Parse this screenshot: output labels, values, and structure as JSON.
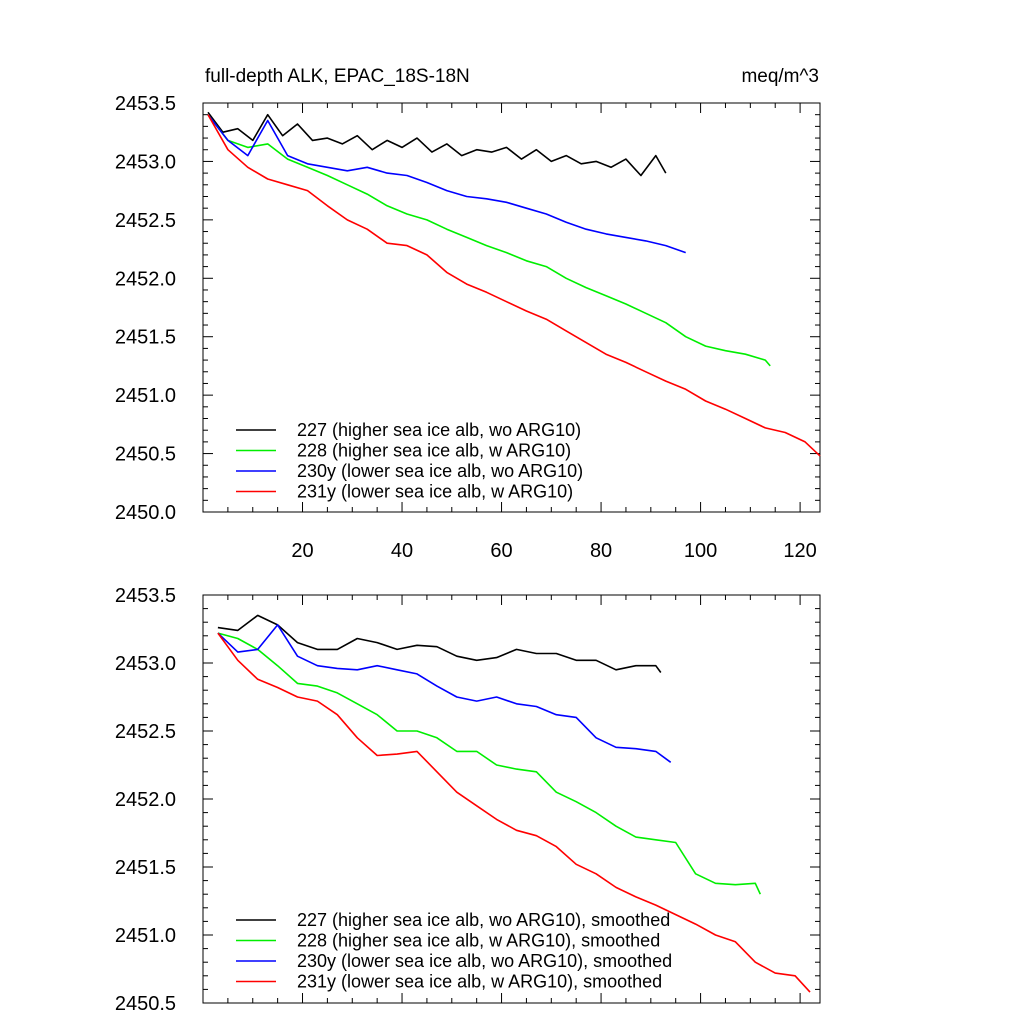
{
  "chart_data": [
    {
      "type": "line",
      "title": "full-depth ALK, EPAC_18S-18N",
      "units": "meq/m^3",
      "xlim": [
        0,
        124
      ],
      "ylim": [
        2450.0,
        2453.5
      ],
      "yticks": [
        "2450.0",
        "2450.5",
        "2451.0",
        "2451.5",
        "2452.0",
        "2452.5",
        "2453.0",
        "2453.5"
      ],
      "xticks": [
        "20",
        "40",
        "60",
        "80",
        "100",
        "120"
      ],
      "legend_position": "bottom-left",
      "series": [
        {
          "name": "227 (higher sea ice alb, wo ARG10)",
          "color": "#000000",
          "x": [
            1,
            4,
            7,
            10,
            13,
            16,
            19,
            22,
            25,
            28,
            31,
            34,
            37,
            40,
            43,
            46,
            49,
            52,
            55,
            58,
            61,
            64,
            67,
            70,
            73,
            76,
            79,
            82,
            85,
            88,
            91,
            93
          ],
          "y": [
            2453.42,
            2453.25,
            2453.28,
            2453.18,
            2453.4,
            2453.22,
            2453.32,
            2453.18,
            2453.2,
            2453.15,
            2453.22,
            2453.1,
            2453.18,
            2453.12,
            2453.2,
            2453.08,
            2453.15,
            2453.05,
            2453.1,
            2453.08,
            2453.12,
            2453.02,
            2453.1,
            2453.0,
            2453.05,
            2452.98,
            2453.0,
            2452.95,
            2453.02,
            2452.88,
            2453.05,
            2452.9
          ]
        },
        {
          "name": "228 (higher sea ice alb, w ARG10)",
          "color": "#00ee00",
          "x": [
            1,
            5,
            9,
            13,
            17,
            21,
            25,
            29,
            33,
            37,
            41,
            45,
            49,
            53,
            57,
            61,
            65,
            69,
            73,
            77,
            81,
            85,
            89,
            93,
            97,
            101,
            105,
            109,
            113,
            114
          ],
          "y": [
            2453.4,
            2453.18,
            2453.12,
            2453.15,
            2453.02,
            2452.95,
            2452.88,
            2452.8,
            2452.72,
            2452.62,
            2452.55,
            2452.5,
            2452.42,
            2452.35,
            2452.28,
            2452.22,
            2452.15,
            2452.1,
            2452.0,
            2451.92,
            2451.85,
            2451.78,
            2451.7,
            2451.62,
            2451.5,
            2451.42,
            2451.38,
            2451.35,
            2451.3,
            2451.25
          ]
        },
        {
          "name": "230y (lower sea ice alb, wo ARG10)",
          "color": "#0000ff",
          "x": [
            1,
            5,
            9,
            13,
            17,
            21,
            25,
            29,
            33,
            37,
            41,
            45,
            49,
            53,
            57,
            61,
            65,
            69,
            73,
            77,
            81,
            85,
            89,
            93,
            97
          ],
          "y": [
            2453.4,
            2453.18,
            2453.05,
            2453.35,
            2453.05,
            2452.98,
            2452.95,
            2452.92,
            2452.95,
            2452.9,
            2452.88,
            2452.82,
            2452.75,
            2452.7,
            2452.68,
            2452.65,
            2452.6,
            2452.55,
            2452.48,
            2452.42,
            2452.38,
            2452.35,
            2452.32,
            2452.28,
            2452.22
          ]
        },
        {
          "name": "231y (lower sea ice alb, w ARG10)",
          "color": "#ff0000",
          "x": [
            1,
            5,
            9,
            13,
            17,
            21,
            25,
            29,
            33,
            37,
            41,
            45,
            49,
            53,
            57,
            61,
            65,
            69,
            73,
            77,
            81,
            85,
            89,
            93,
            97,
            101,
            105,
            109,
            113,
            117,
            121,
            124
          ],
          "y": [
            2453.4,
            2453.1,
            2452.95,
            2452.85,
            2452.8,
            2452.75,
            2452.62,
            2452.5,
            2452.42,
            2452.3,
            2452.28,
            2452.2,
            2452.05,
            2451.95,
            2451.88,
            2451.8,
            2451.72,
            2451.65,
            2451.55,
            2451.45,
            2451.35,
            2451.28,
            2451.2,
            2451.12,
            2451.05,
            2450.95,
            2450.88,
            2450.8,
            2450.72,
            2450.68,
            2450.6,
            2450.48
          ]
        }
      ]
    },
    {
      "type": "line",
      "xlim": [
        0,
        124
      ],
      "ylim": [
        2450.5,
        2453.5
      ],
      "yticks": [
        "2450.5",
        "2451.0",
        "2451.5",
        "2452.0",
        "2452.5",
        "2453.0",
        "2453.5"
      ],
      "xticks": [],
      "legend_position": "bottom-left",
      "series": [
        {
          "name": "227 (higher sea ice alb, wo ARG10), smoothed",
          "color": "#000000",
          "x": [
            3,
            7,
            11,
            15,
            19,
            23,
            27,
            31,
            35,
            39,
            43,
            47,
            51,
            55,
            59,
            63,
            67,
            71,
            75,
            79,
            83,
            87,
            91,
            92
          ],
          "y": [
            2453.26,
            2453.24,
            2453.35,
            2453.28,
            2453.15,
            2453.1,
            2453.1,
            2453.18,
            2453.15,
            2453.1,
            2453.13,
            2453.12,
            2453.05,
            2453.02,
            2453.04,
            2453.1,
            2453.07,
            2453.07,
            2453.02,
            2453.02,
            2452.95,
            2452.98,
            2452.98,
            2452.93
          ]
        },
        {
          "name": "228 (higher sea ice alb, w ARG10), smoothed",
          "color": "#00ee00",
          "x": [
            3,
            7,
            11,
            15,
            19,
            23,
            27,
            31,
            35,
            39,
            43,
            47,
            51,
            55,
            59,
            63,
            67,
            71,
            75,
            79,
            83,
            87,
            91,
            95,
            99,
            103,
            107,
            111,
            112
          ],
          "y": [
            2453.22,
            2453.18,
            2453.1,
            2452.98,
            2452.85,
            2452.83,
            2452.78,
            2452.7,
            2452.62,
            2452.5,
            2452.5,
            2452.45,
            2452.35,
            2452.35,
            2452.25,
            2452.22,
            2452.2,
            2452.05,
            2451.98,
            2451.9,
            2451.8,
            2451.72,
            2451.7,
            2451.68,
            2451.45,
            2451.38,
            2451.37,
            2451.38,
            2451.3
          ]
        },
        {
          "name": "230y (lower sea ice alb, wo ARG10), smoothed",
          "color": "#0000ff",
          "x": [
            3,
            7,
            11,
            15,
            19,
            23,
            27,
            31,
            35,
            39,
            43,
            47,
            51,
            55,
            59,
            63,
            67,
            71,
            75,
            79,
            83,
            87,
            91,
            94
          ],
          "y": [
            2453.22,
            2453.08,
            2453.1,
            2453.28,
            2453.05,
            2452.98,
            2452.96,
            2452.95,
            2452.98,
            2452.95,
            2452.92,
            2452.83,
            2452.75,
            2452.72,
            2452.75,
            2452.7,
            2452.68,
            2452.62,
            2452.6,
            2452.45,
            2452.38,
            2452.37,
            2452.35,
            2452.27
          ]
        },
        {
          "name": "231y (lower sea ice alb, w ARG10), smoothed",
          "color": "#ff0000",
          "x": [
            3,
            7,
            11,
            15,
            19,
            23,
            27,
            31,
            35,
            39,
            43,
            47,
            51,
            55,
            59,
            63,
            67,
            71,
            75,
            79,
            83,
            87,
            91,
            95,
            99,
            103,
            107,
            111,
            115,
            119,
            122
          ],
          "y": [
            2453.22,
            2453.02,
            2452.88,
            2452.82,
            2452.75,
            2452.72,
            2452.62,
            2452.45,
            2452.32,
            2452.33,
            2452.35,
            2452.2,
            2452.05,
            2451.95,
            2451.85,
            2451.77,
            2451.73,
            2451.65,
            2451.52,
            2451.45,
            2451.35,
            2451.28,
            2451.22,
            2451.15,
            2451.08,
            2451.0,
            2450.95,
            2450.8,
            2450.72,
            2450.7,
            2450.58
          ]
        }
      ]
    }
  ]
}
